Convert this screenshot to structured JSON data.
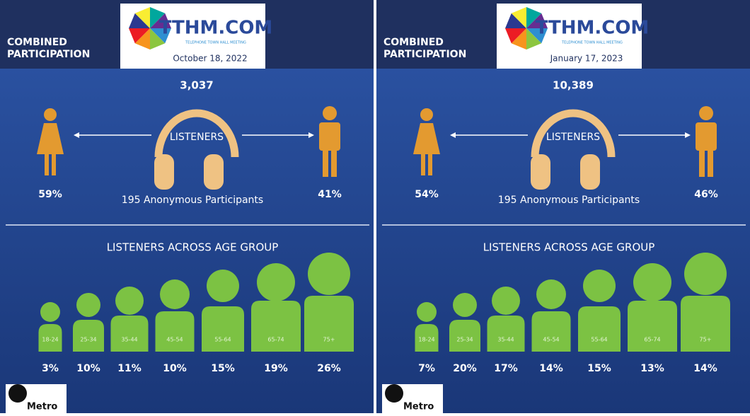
{
  "panels": [
    {
      "header": "COMBINED PARTICIPATION",
      "logo": "TTHM.COM",
      "logo_tagline": "TELEPHONE TOWN HALL MEETING",
      "date": "October 18, 2022",
      "total": "3,037",
      "listeners_label": "LISTENERS",
      "female": "59%",
      "male": "41%",
      "participants": "195 Anonymous Participants",
      "age_title": "LISTENERS ACROSS AGE GROUP",
      "age_groups": [
        {
          "label": "18-24",
          "value": "3%"
        },
        {
          "label": "25-34",
          "value": "10%"
        },
        {
          "label": "35-44",
          "value": "11%"
        },
        {
          "label": "45-54",
          "value": "10%"
        },
        {
          "label": "55-64",
          "value": "15%"
        },
        {
          "label": "65-74",
          "value": "19%"
        },
        {
          "label": "75+",
          "value": "26%"
        }
      ],
      "footer_logo": "Metro"
    },
    {
      "header": "COMBINED PARTICIPATION",
      "logo": "TTHM.COM",
      "logo_tagline": "TELEPHONE TOWN HALL MEETING",
      "date": "January 17, 2023",
      "total": "10,389",
      "listeners_label": "LISTENERS",
      "female": "54%",
      "male": "46%",
      "participants": "195 Anonymous Participants",
      "age_title": "LISTENERS ACROSS AGE GROUP",
      "age_groups": [
        {
          "label": "18-24",
          "value": "7%"
        },
        {
          "label": "25-34",
          "value": "20%"
        },
        {
          "label": "35-44",
          "value": "17%"
        },
        {
          "label": "45-54",
          "value": "14%"
        },
        {
          "label": "55-64",
          "value": "15%"
        },
        {
          "label": "65-74",
          "value": "13%"
        },
        {
          "label": "75+",
          "value": "14%"
        }
      ],
      "footer_logo": "Metro"
    }
  ]
}
